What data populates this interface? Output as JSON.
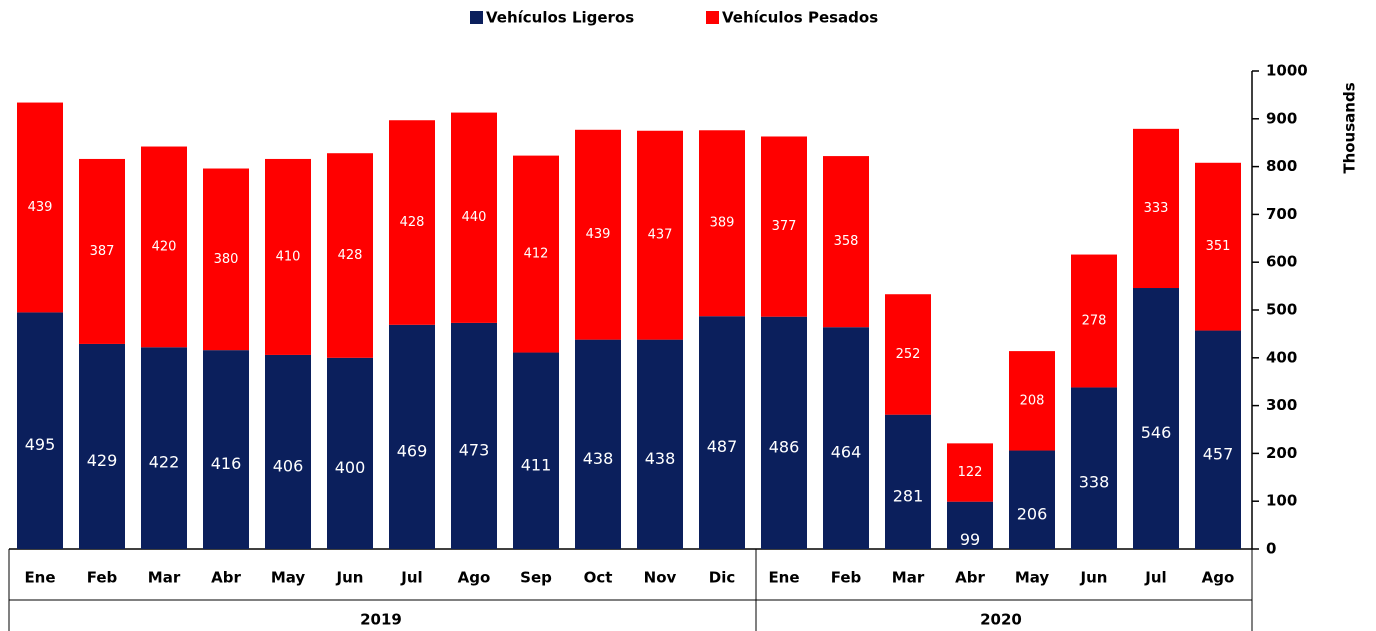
{
  "chart_data": {
    "type": "stacked_bar",
    "groups": [
      {
        "label": "2019",
        "categories": [
          "Ene",
          "Feb",
          "Mar",
          "Abr",
          "May",
          "Jun",
          "Jul",
          "Ago",
          "Sep",
          "Oct",
          "Nov",
          "Dic"
        ]
      },
      {
        "label": "2020",
        "categories": [
          "Ene",
          "Feb",
          "Mar",
          "Abr",
          "May",
          "Jun",
          "Jul",
          "Ago"
        ]
      }
    ],
    "series": [
      {
        "name": "Vehículos Ligeros",
        "color": "#0b1f5c",
        "values": [
          495,
          429,
          422,
          416,
          406,
          400,
          469,
          473,
          411,
          438,
          438,
          487,
          486,
          464,
          281,
          99,
          206,
          338,
          546,
          457
        ]
      },
      {
        "name": "Vehículos Pesados",
        "color": "#ff0000",
        "values": [
          439,
          387,
          420,
          380,
          410,
          428,
          428,
          440,
          412,
          439,
          437,
          389,
          377,
          358,
          252,
          122,
          208,
          278,
          333,
          351
        ]
      }
    ],
    "y_axis_label": "Thousands",
    "ylim": [
      0,
      1000
    ],
    "yticks": [
      0,
      100,
      200,
      300,
      400,
      500,
      600,
      700,
      800,
      900,
      1000
    ],
    "legend": "top"
  }
}
